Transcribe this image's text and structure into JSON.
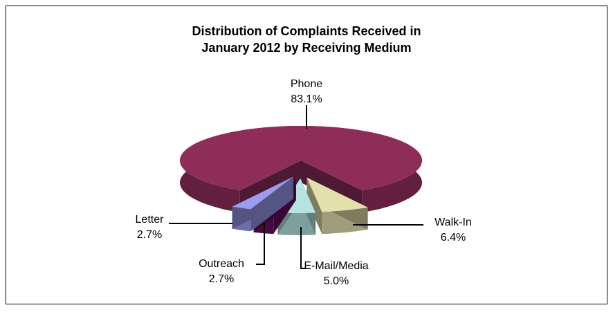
{
  "chart_data": {
    "type": "pie3d",
    "title": [
      "Distribution of Complaints Received in",
      "January 2012 by Receiving Medium"
    ],
    "categories": [
      "Phone",
      "Walk-In",
      "E-Mail/Media",
      "Outreach",
      "Letter"
    ],
    "values": [
      83.1,
      6.4,
      5.0,
      2.7,
      2.7
    ],
    "value_labels": [
      "83.1%",
      "6.4%",
      "5.0%",
      "2.7%",
      "2.7%"
    ],
    "colors": [
      "#8e2d5a",
      "#e4e0ae",
      "#b5e3e1",
      "#6a0b5d",
      "#9b9bef"
    ]
  }
}
